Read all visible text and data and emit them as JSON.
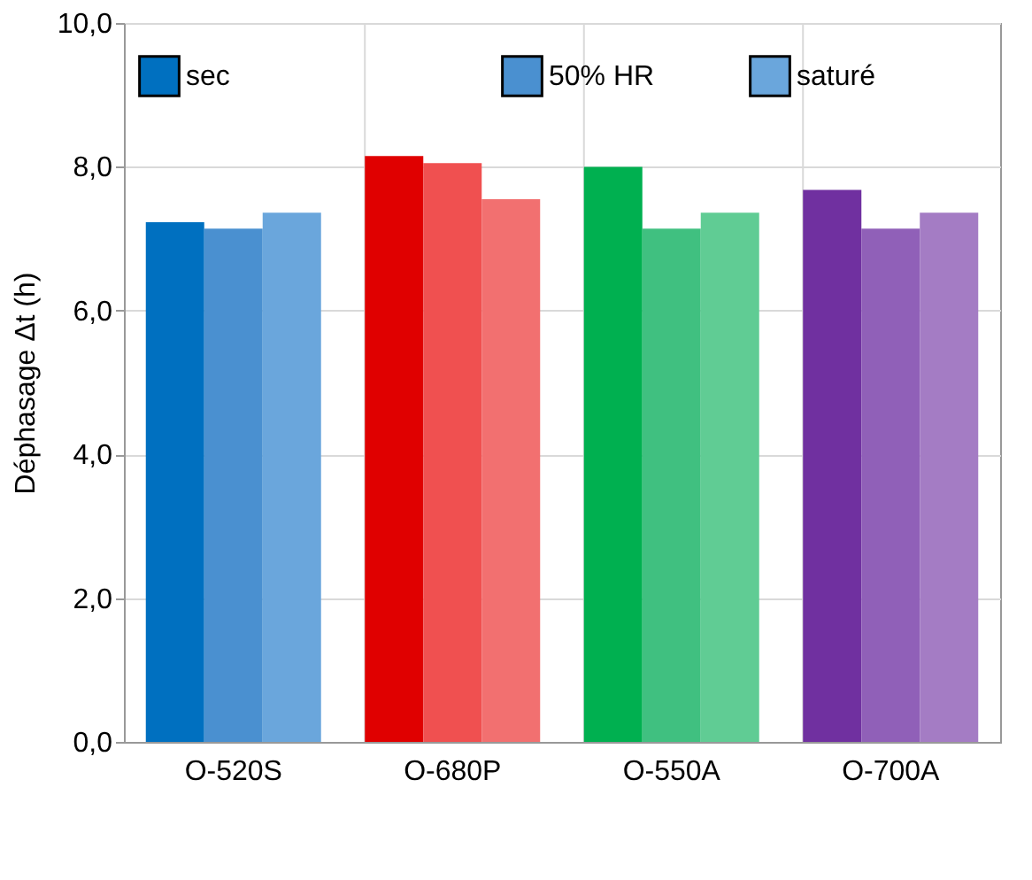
{
  "chart_data": {
    "type": "bar",
    "ylabel": "Déphasage Δt (h)",
    "categories": [
      "O-520S",
      "O-680P",
      "O-550A",
      "O-700A"
    ],
    "series": [
      {
        "name": "sec",
        "colors": [
          "#0070c0",
          "#e00000",
          "#00b050",
          "#7030a0"
        ],
        "values": [
          7.23,
          8.15,
          8.0,
          7.68
        ]
      },
      {
        "name": "50% HR",
        "colors": [
          "#4a90d0",
          "#f05050",
          "#40c080",
          "#9060b8"
        ],
        "values": [
          7.14,
          8.05,
          7.14,
          7.14
        ]
      },
      {
        "name": "saturé",
        "colors": [
          "#6aa6dc",
          "#f27070",
          "#60cc94",
          "#a47cc4"
        ],
        "values": [
          7.36,
          7.55,
          7.36,
          7.36
        ]
      }
    ],
    "ylim": [
      0,
      10
    ],
    "yticks": [
      {
        "value": 0,
        "label": "0,0"
      },
      {
        "value": 2,
        "label": "2,0"
      },
      {
        "value": 4,
        "label": "4,0"
      },
      {
        "value": 6,
        "label": "6,0"
      },
      {
        "value": 8,
        "label": "8,0"
      },
      {
        "value": 10,
        "label": "10,0"
      }
    ],
    "grid": true,
    "legend": "top"
  }
}
